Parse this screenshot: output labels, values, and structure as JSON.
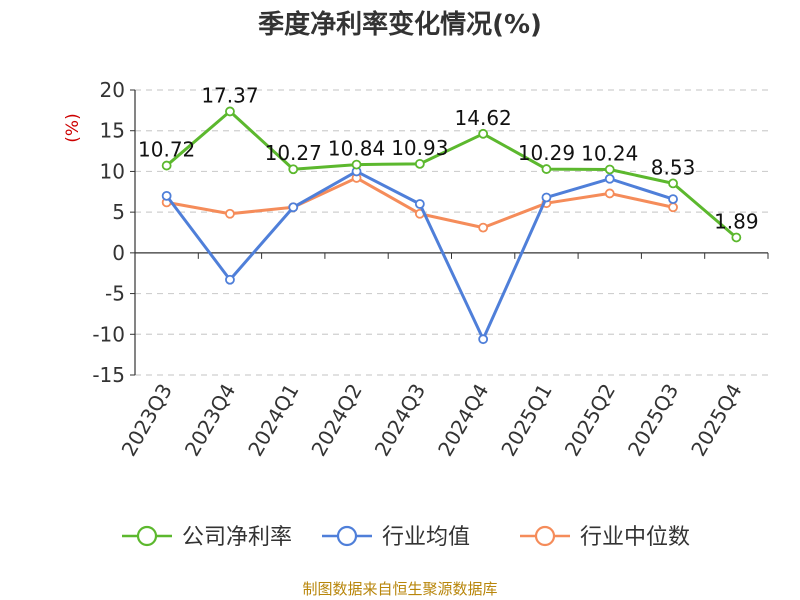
{
  "chart_data": {
    "type": "line",
    "title": "季度净利率变化情况(%)",
    "ylabel": "(%)",
    "categories": [
      "2023Q3",
      "2023Q4",
      "2024Q1",
      "2024Q2",
      "2024Q3",
      "2024Q4",
      "2025Q1",
      "2025Q2",
      "2025Q3",
      "2025Q4"
    ],
    "yticks": [
      20,
      15,
      10,
      5,
      0,
      -5,
      -10,
      -15
    ],
    "ylim": [
      -15,
      20
    ],
    "grid": true,
    "legend_position": "bottom",
    "series": [
      {
        "name": "公司净利率",
        "color": "#5cb82e",
        "values": [
          10.72,
          17.37,
          10.27,
          10.84,
          10.93,
          14.62,
          10.29,
          10.24,
          8.53,
          1.89
        ],
        "labels": [
          "10.72",
          "17.37",
          "10.27",
          "10.84",
          "10.93",
          "14.62",
          "10.29",
          "10.24",
          "8.53",
          "1.89"
        ]
      },
      {
        "name": "行业均值",
        "color": "#4f7fd9",
        "values": [
          7.0,
          -3.3,
          5.6,
          10.0,
          6.0,
          -10.6,
          6.8,
          9.1,
          6.6,
          null
        ]
      },
      {
        "name": "行业中位数",
        "color": "#f58c5a",
        "values": [
          6.2,
          4.8,
          5.6,
          9.2,
          4.8,
          3.1,
          6.1,
          7.3,
          5.6,
          null
        ]
      }
    ]
  },
  "footer": {
    "source": "制图数据来自恒生聚源数据库"
  }
}
